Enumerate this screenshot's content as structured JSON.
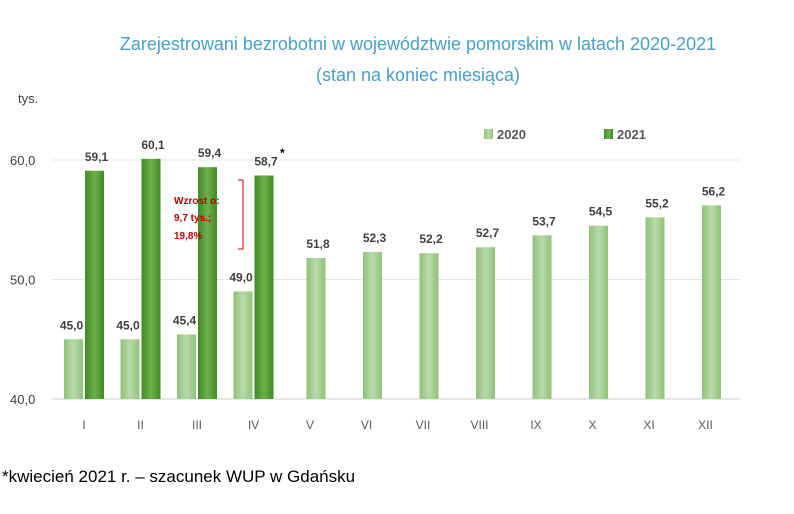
{
  "chart_data": {
    "type": "bar",
    "title": "Zarejestrowani bezrobotni w województwie pomorskim w latach 2020-2021",
    "subtitle": "(stan na koniec miesiąca)",
    "ylabel": "tys.",
    "ylim": [
      40,
      64
    ],
    "yticks": [
      "40,0",
      "50,0",
      "60,0"
    ],
    "ytick_values": [
      40,
      50,
      60
    ],
    "categories": [
      "I",
      "II",
      "III",
      "IV",
      "V",
      "VI",
      "VII",
      "VIII",
      "IX",
      "X",
      "XI",
      "XII"
    ],
    "series": [
      {
        "name": "2020",
        "color": "#a9d18e",
        "values": [
          45.0,
          45.0,
          45.4,
          49.0,
          51.8,
          52.3,
          52.2,
          52.7,
          53.7,
          54.5,
          55.2,
          56.2
        ],
        "labels": [
          "45,0",
          "45,0",
          "45,4",
          "49,0",
          "51,8",
          "52,3",
          "52,2",
          "52,7",
          "53,7",
          "54,5",
          "55,2",
          "56,2"
        ]
      },
      {
        "name": "2021",
        "color": "#5a9e3a",
        "values": [
          59.1,
          60.1,
          59.4,
          58.7,
          null,
          null,
          null,
          null,
          null,
          null,
          null,
          null
        ],
        "labels": [
          "59,1",
          "60,1",
          "59,4",
          "58,7",
          null,
          null,
          null,
          null,
          null,
          null,
          null,
          null
        ]
      }
    ],
    "legend_position": "top-right",
    "grid": true,
    "annotation": {
      "lines": [
        "Wzrost o:",
        "9,7 tys.;",
        "19,8%"
      ],
      "color": "#c00000"
    },
    "asterisk": "*"
  },
  "footnote": "*kwiecień 2021 r. – szacunek WUP w Gdańsku"
}
